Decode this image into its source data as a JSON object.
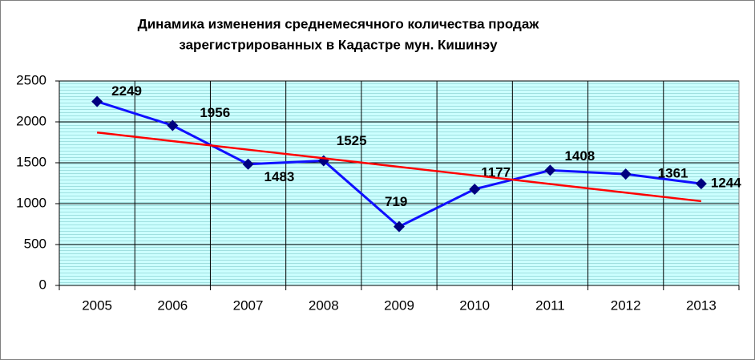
{
  "chart_data": {
    "type": "line",
    "title": [
      "Динамика изменения среднемесячного количества продаж",
      "зарегистрированных в Кадастре мун. Кишинэу"
    ],
    "categories": [
      "2005",
      "2006",
      "2007",
      "2008",
      "2009",
      "2010",
      "2011",
      "2012",
      "2013"
    ],
    "series": [
      {
        "color": "#1010ff",
        "marker_color": "#000080",
        "values": [
          2249,
          1956,
          1483,
          1525,
          719,
          1177,
          1408,
          1361,
          1244
        ],
        "show_labels": true
      },
      {
        "color": "#ff0000",
        "values": [
          1870,
          1765,
          1660,
          1555,
          1450,
          1345,
          1240,
          1135,
          1030
        ],
        "show_labels": false
      }
    ],
    "ylim": [
      0,
      2500
    ],
    "yticks": [
      0,
      500,
      1000,
      1500,
      2000,
      2500
    ],
    "grid": true
  }
}
